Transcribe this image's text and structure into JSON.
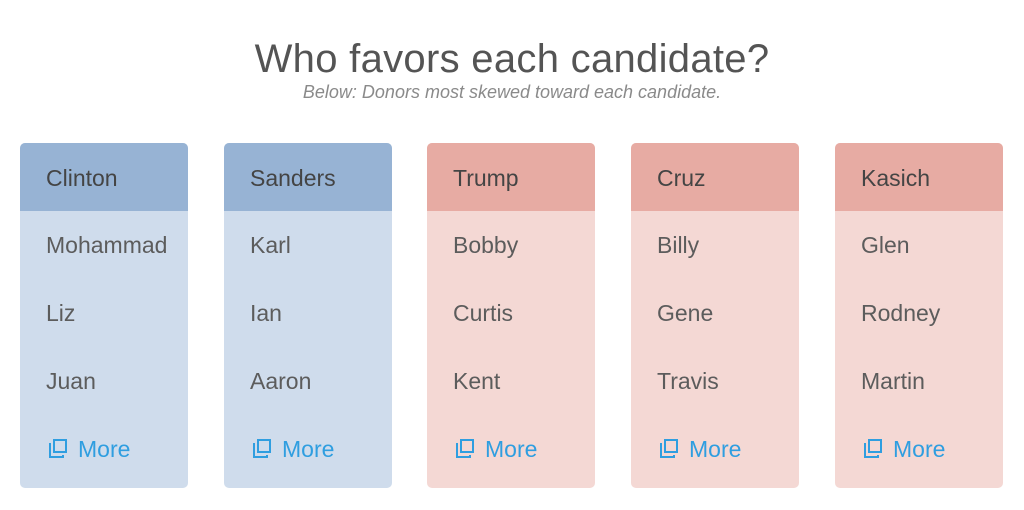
{
  "title": "Who favors each candidate?",
  "subtitle": "Below: Donors most skewed toward each candidate.",
  "colors": {
    "dem_header": "#97b3d4",
    "dem_body": "#cfdcec",
    "rep_header": "#e7aba3",
    "rep_body": "#f4d8d4",
    "link": "#2f9ee0"
  },
  "candidates": [
    {
      "name": "Clinton",
      "party": "dem",
      "donors": [
        "Mohammad",
        "Liz",
        "Juan"
      ],
      "more_label": "More",
      "more_icon": "open-window-icon"
    },
    {
      "name": "Sanders",
      "party": "dem",
      "donors": [
        "Karl",
        "Ian",
        "Aaron"
      ],
      "more_label": "More",
      "more_icon": "open-window-icon"
    },
    {
      "name": "Trump",
      "party": "rep",
      "donors": [
        "Bobby",
        "Curtis",
        "Kent"
      ],
      "more_label": "More",
      "more_icon": "open-window-icon"
    },
    {
      "name": "Cruz",
      "party": "rep",
      "donors": [
        "Billy",
        "Gene",
        "Travis"
      ],
      "more_label": "More",
      "more_icon": "open-window-icon"
    },
    {
      "name": "Kasich",
      "party": "rep",
      "donors": [
        "Glen",
        "Rodney",
        "Martin"
      ],
      "more_label": "More",
      "more_icon": "open-window-icon"
    }
  ]
}
